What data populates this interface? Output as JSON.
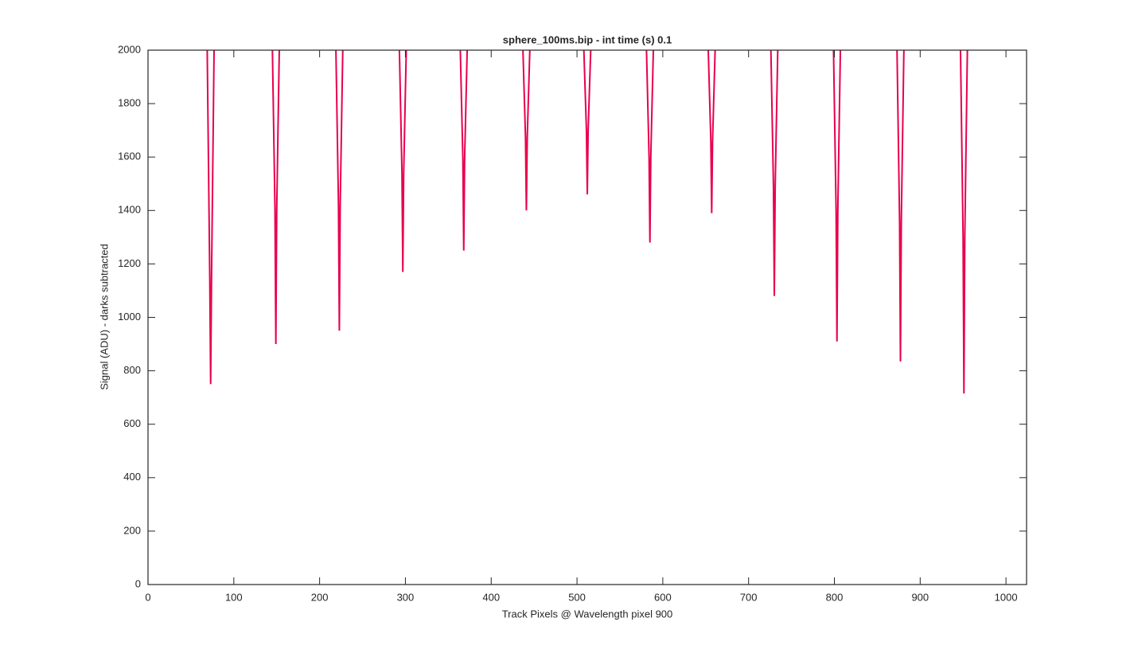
{
  "chart_data": {
    "type": "line",
    "title": "sphere_100ms.bip - int time (s) 0.1",
    "x_label": "Track Pixels @ Wavelength pixel 900",
    "y_label": "Signal (ADU) - darks subtracted",
    "xlim": [
      0,
      1024
    ],
    "ylim": [
      0,
      2000
    ],
    "xticks": [
      0,
      100,
      200,
      300,
      400,
      500,
      600,
      700,
      800,
      900,
      1000
    ],
    "yticks": [
      0,
      200,
      400,
      600,
      800,
      1000,
      1200,
      1400,
      1600,
      1800,
      2000
    ],
    "series": [
      {
        "color": "#e8004d",
        "x": [
          69,
          72,
          73,
          74,
          77
        ],
        "values": [
          2000,
          1140,
          750,
          1140,
          2000
        ]
      },
      {
        "color": "#e8004d",
        "x": [
          145,
          148,
          149,
          150,
          153
        ],
        "values": [
          2000,
          1400,
          900,
          1400,
          2000
        ]
      },
      {
        "color": "#e8004d",
        "x": [
          219,
          222,
          223,
          224,
          227
        ],
        "values": [
          2000,
          1420,
          950,
          1420,
          2000
        ]
      },
      {
        "color": "#e8004d",
        "x": [
          293,
          296,
          297,
          298,
          301
        ],
        "values": [
          2000,
          1540,
          1170,
          1540,
          2000
        ]
      },
      {
        "color": "#e8004d",
        "x": [
          364,
          367,
          368,
          369,
          372
        ],
        "values": [
          2000,
          1590,
          1250,
          1590,
          2000
        ]
      },
      {
        "color": "#e8004d",
        "x": [
          437,
          440,
          441,
          442,
          445
        ],
        "values": [
          2000,
          1670,
          1400,
          1670,
          2000
        ]
      },
      {
        "color": "#e8004d",
        "x": [
          508,
          511,
          512,
          513,
          516
        ],
        "values": [
          2000,
          1700,
          1460,
          1700,
          2000
        ]
      },
      {
        "color": "#e8004d",
        "x": [
          581,
          584,
          585,
          586,
          589
        ],
        "values": [
          2000,
          1600,
          1280,
          1600,
          2000
        ]
      },
      {
        "color": "#e8004d",
        "x": [
          653,
          656,
          657,
          658,
          661
        ],
        "values": [
          2000,
          1660,
          1390,
          1660,
          2000
        ]
      },
      {
        "color": "#e8004d",
        "x": [
          726,
          729,
          730,
          731,
          734
        ],
        "values": [
          2000,
          1490,
          1080,
          1490,
          2000
        ]
      },
      {
        "color": "#e8004d",
        "x": [
          799,
          802,
          803,
          804,
          807
        ],
        "values": [
          2000,
          1400,
          910,
          1400,
          2000
        ]
      },
      {
        "color": "#e8004d",
        "x": [
          873,
          876,
          877,
          878,
          881
        ],
        "values": [
          2000,
          1360,
          835,
          1360,
          2000
        ]
      },
      {
        "color": "#e8004d",
        "x": [
          947,
          950,
          951,
          952,
          955
        ],
        "values": [
          2000,
          1300,
          715,
          1300,
          2000
        ]
      }
    ]
  }
}
